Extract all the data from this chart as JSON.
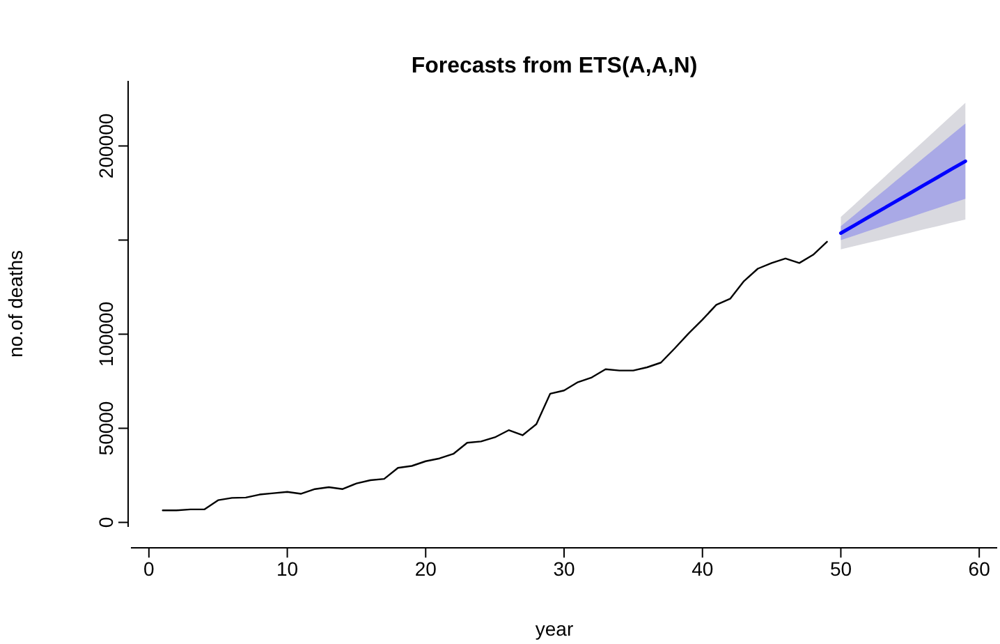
{
  "chart_data": {
    "type": "line",
    "title": "Forecasts from ETS(A,A,N)",
    "xlabel": "year",
    "ylabel": "no.of deaths",
    "xlim": [
      -1.3,
      61.3
    ],
    "ylim": [
      -2400,
      234600
    ],
    "xticks": [
      0,
      10,
      20,
      30,
      40,
      50,
      60
    ],
    "yticks": [
      0,
      50000,
      100000,
      {
        "value": 150000,
        "label": null
      },
      200000
    ],
    "series": [
      {
        "color": "#000000",
        "x": [
          1,
          2,
          3,
          4,
          5,
          6,
          7,
          8,
          9,
          10,
          11,
          12,
          13,
          14,
          15,
          16,
          17,
          18,
          19,
          20,
          21,
          22,
          23,
          24,
          25,
          26,
          27,
          28,
          29,
          30,
          31,
          32,
          33,
          34,
          35,
          36,
          37,
          38,
          39,
          40,
          41,
          42,
          43,
          44,
          45,
          46,
          47,
          48,
          49
        ],
        "values": [
          6400,
          6400,
          6900,
          6900,
          11800,
          13000,
          13200,
          14800,
          15500,
          16200,
          15200,
          17700,
          18700,
          17700,
          20700,
          22400,
          23100,
          29000,
          30000,
          32500,
          34000,
          36400,
          42300,
          43000,
          45200,
          49000,
          46300,
          52200,
          68400,
          70100,
          74500,
          77000,
          81400,
          80700,
          80700,
          82400,
          84900,
          92500,
          100400,
          107700,
          115600,
          118800,
          128200,
          134800,
          137800,
          140200,
          137800,
          142200,
          149100
        ]
      },
      {
        "color": "#d9d9df",
        "x": [
          50,
          51,
          52,
          53,
          54,
          55,
          56,
          57,
          58,
          59
        ],
        "values": [
          null,
          null,
          null,
          null,
          null,
          null,
          null,
          null,
          null,
          null
        ],
        "lower": [
          145100,
          146800,
          148600,
          150300,
          152100,
          153900,
          155700,
          157400,
          159200,
          160900
        ],
        "upper": [
          162300,
          169000,
          175800,
          182500,
          189300,
          196000,
          202700,
          209400,
          216200,
          222900
        ]
      },
      {
        "color": "#0000ff",
        "x": [
          50,
          51,
          52,
          53,
          54,
          55,
          56,
          57,
          58,
          59
        ],
        "values": [
          153700,
          157900,
          162200,
          166400,
          170700,
          174900,
          179200,
          183400,
          187700,
          191900
        ],
        "lower": [
          150000,
          152400,
          154900,
          157300,
          159800,
          162100,
          164600,
          167000,
          169500,
          171900
        ],
        "upper": [
          157400,
          163400,
          169500,
          175500,
          181600,
          187700,
          193800,
          199800,
          205900,
          211900
        ]
      }
    ]
  }
}
